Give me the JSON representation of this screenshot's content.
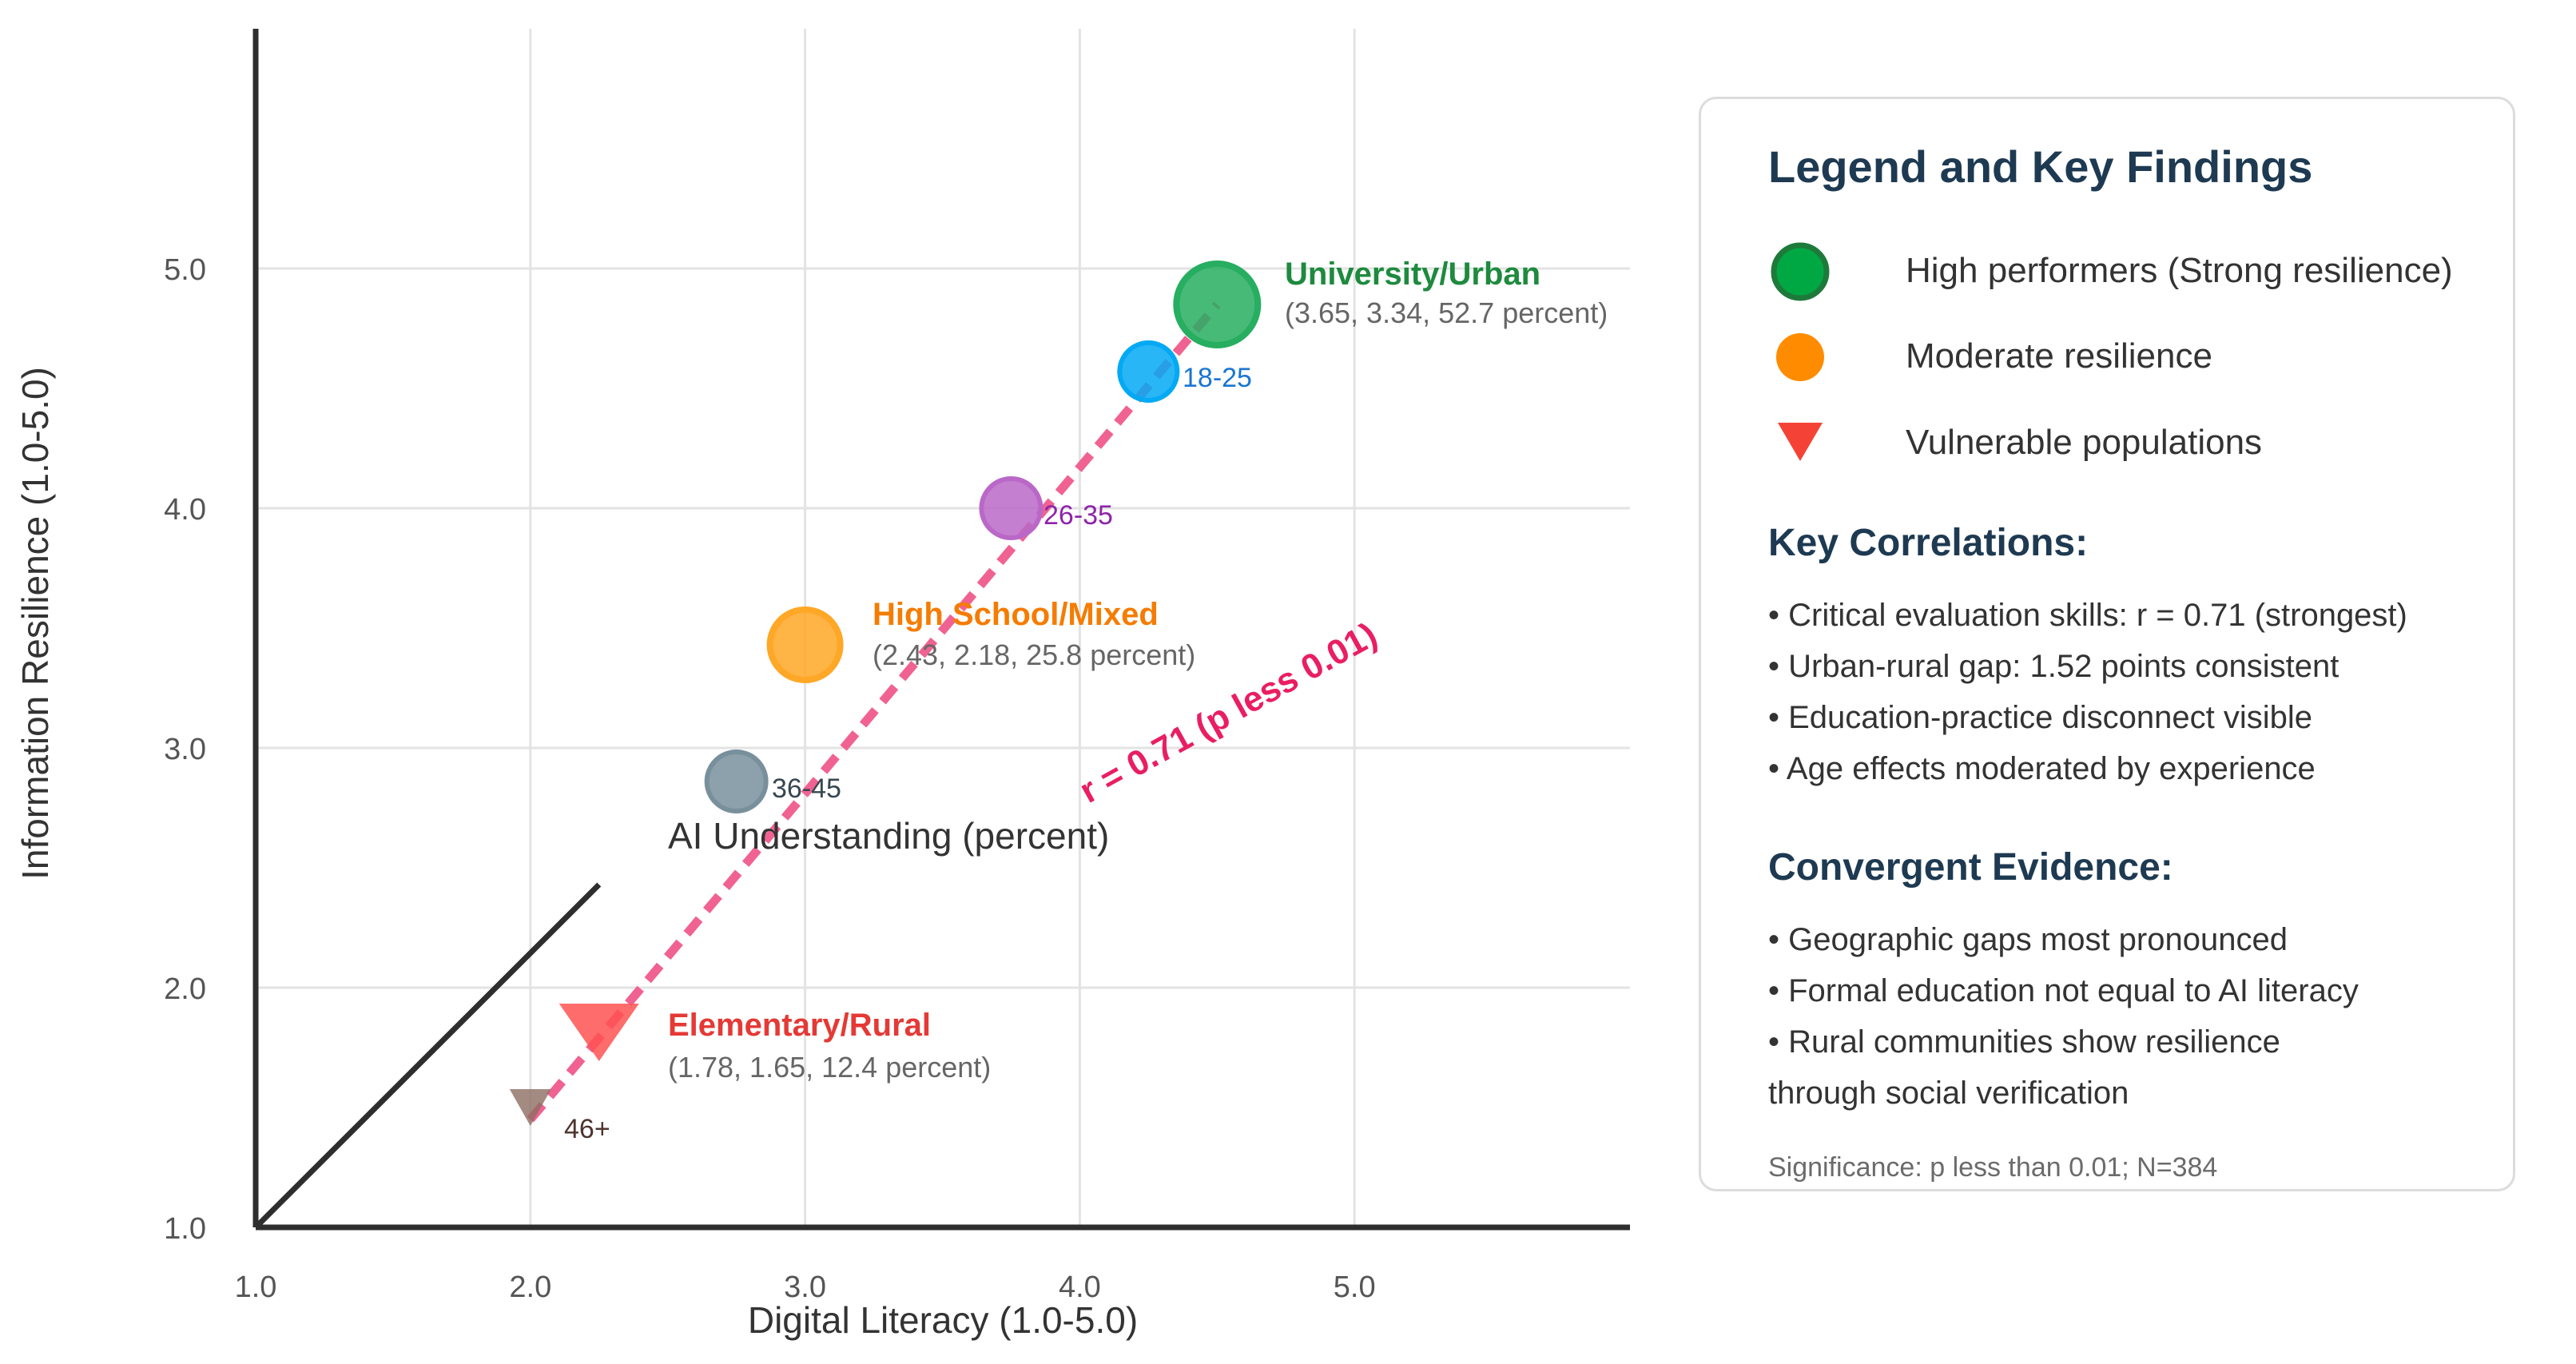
{
  "chart_data": {
    "type": "scatter",
    "xlabel": "Digital Literacy (1.0-5.0)",
    "ylabel": "Information Resilience (1.0-5.0)",
    "xlim": [
      1.0,
      6.0
    ],
    "ylim": [
      1.0,
      6.0
    ],
    "x_ticks": [
      "1.0",
      "2.0",
      "3.0",
      "4.0",
      "5.0"
    ],
    "y_ticks": [
      "1.0",
      "2.0",
      "3.0",
      "4.0",
      "5.0"
    ],
    "grid": true,
    "size_annotation": "AI Understanding (percent)",
    "trend_line": {
      "from": [
        2.0,
        1.45
      ],
      "to": [
        4.5,
        4.85
      ],
      "label": "r = 0.71 (p less 0.01)",
      "color": "#f06292"
    },
    "reference_line": {
      "from": [
        1.0,
        1.0
      ],
      "to": [
        2.25,
        2.43
      ]
    },
    "education_groups": [
      {
        "name": "University/Urban",
        "x": 4.5,
        "y": 4.85,
        "size_percent": 52.7,
        "detail": "(3.65, 3.34, 52.7 percent)",
        "marker": "circle",
        "color": "#27ae60",
        "label_color": "#1e8a3e"
      },
      {
        "name": "High School/Mixed",
        "x": 3.0,
        "y": 3.43,
        "size_percent": 25.8,
        "detail": "(2.43, 2.18, 25.8 percent)",
        "marker": "circle",
        "color": "#ffa726",
        "label_color": "#f57c00"
      },
      {
        "name": "Elementary/Rural",
        "x": 2.25,
        "y": 1.8,
        "size_percent": 12.4,
        "detail": "(1.78, 1.65, 12.4 percent)",
        "marker": "triangle-down",
        "color": "#ff5252",
        "label_color": "#e53935"
      }
    ],
    "age_groups": [
      {
        "name": "18-25",
        "x": 4.25,
        "y": 4.57,
        "color": "#03a9f4",
        "label_color": "#1976d2",
        "marker": "circle"
      },
      {
        "name": "26-35",
        "x": 3.75,
        "y": 4.0,
        "color": "#ba68c8",
        "label_color": "#8e24aa",
        "marker": "circle"
      },
      {
        "name": "36-45",
        "x": 2.75,
        "y": 2.86,
        "color": "#78909c",
        "label_color": "#37474f",
        "marker": "circle"
      },
      {
        "name": "46+",
        "x": 2.0,
        "y": 1.5,
        "color": "#8d6e63",
        "label_color": "#4e342e",
        "marker": "triangle-down"
      }
    ]
  },
  "legend": {
    "title": "Legend and Key Findings",
    "items": [
      {
        "label": "High performers (Strong resilience)",
        "marker": "circle",
        "color": "#00a844",
        "edge": "#1e7a3a"
      },
      {
        "label": "Moderate resilience",
        "marker": "circle",
        "color": "#ff8c00",
        "edge": "#ff8c00"
      },
      {
        "label": "Vulnerable populations",
        "marker": "triangle-down",
        "color": "#f44336",
        "edge": "#f44336"
      }
    ],
    "correlations_heading": "Key Correlations:",
    "correlations": [
      "• Critical evaluation skills: r = 0.71 (strongest)",
      "• Urban-rural gap: 1.52 points consistent",
      "• Education-practice disconnect visible",
      "• Age effects moderated by experience"
    ],
    "evidence_heading": "Convergent Evidence:",
    "evidence": [
      "• Geographic gaps most pronounced",
      "• Formal education not equal to AI literacy",
      "• Rural communities show resilience",
      "through social verification"
    ],
    "significance": "Significance: p less than 0.01; N=384"
  }
}
